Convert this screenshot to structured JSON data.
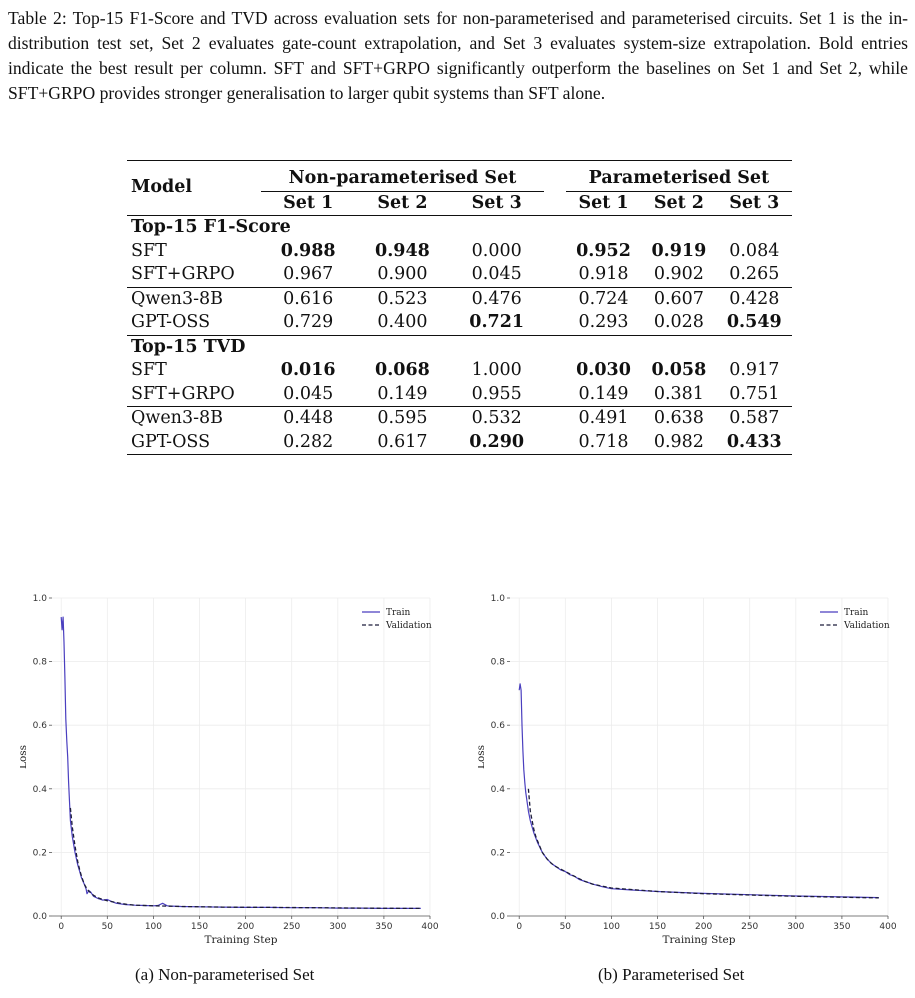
{
  "caption": "Table 2: Top-15 F1-Score and TVD across evaluation sets for non-parameterised and parameterised circuits. Set 1 is the in-distribution test set, Set 2 evaluates gate-count extrapolation, and Set 3 evaluates system-size extrapolation. Bold entries indicate the best result per column. SFT and SFT+GRPO significantly outperform the baselines on Set 1 and Set 2, while SFT+GRPO provides stronger generalisation to larger qubit systems than SFT alone.",
  "table": {
    "model_header": "Model",
    "group_nonparam": "Non-parameterised Set",
    "group_param": "Parameterised Set",
    "set_labels": [
      "Set 1",
      "Set 2",
      "Set 3",
      "Set 1",
      "Set 2",
      "Set 3"
    ],
    "sections": [
      {
        "title": "Top-15 F1-Score",
        "rows": [
          {
            "model": "SFT",
            "values": [
              "0.988",
              "0.948",
              "0.000",
              "0.952",
              "0.919",
              "0.084"
            ]
          },
          {
            "model": "SFT+GRPO",
            "values": [
              "0.967",
              "0.900",
              "0.045",
              "0.918",
              "0.902",
              "0.265"
            ]
          },
          {
            "model": "Qwen3-8B",
            "values": [
              "0.616",
              "0.523",
              "0.476",
              "0.724",
              "0.607",
              "0.428"
            ]
          },
          {
            "model": "GPT-OSS",
            "values": [
              "0.729",
              "0.400",
              "0.721",
              "0.293",
              "0.028",
              "0.549"
            ]
          }
        ]
      },
      {
        "title": "Top-15 TVD",
        "rows": [
          {
            "model": "SFT",
            "values": [
              "0.016",
              "0.068",
              "1.000",
              "0.030",
              "0.058",
              "0.917"
            ]
          },
          {
            "model": "SFT+GRPO",
            "values": [
              "0.045",
              "0.149",
              "0.955",
              "0.149",
              "0.381",
              "0.751"
            ]
          },
          {
            "model": "Qwen3-8B",
            "values": [
              "0.448",
              "0.595",
              "0.532",
              "0.491",
              "0.638",
              "0.587"
            ]
          },
          {
            "model": "GPT-OSS",
            "values": [
              "0.282",
              "0.617",
              "0.290",
              "0.718",
              "0.982",
              "0.433"
            ]
          }
        ]
      }
    ]
  },
  "chart_data": [
    {
      "type": "line",
      "caption": "(a) Non-parameterised Set",
      "xlabel": "Training Step",
      "ylabel": "Loss",
      "xlim": [
        -10,
        400
      ],
      "ylim": [
        0,
        1.0
      ],
      "xticks": [
        0,
        50,
        100,
        150,
        200,
        250,
        300,
        350,
        400
      ],
      "yticks": [
        0.0,
        0.2,
        0.4,
        0.6,
        0.8,
        1.0
      ],
      "ytick_labels": [
        "0.0",
        "0.2",
        "0.4",
        "0.6",
        "0.8",
        "1.0"
      ],
      "grid": true,
      "legend": "top-right",
      "series": [
        {
          "name": "Train",
          "style": "solid",
          "color": "#4a3fbf",
          "x": [
            0,
            1,
            2,
            3,
            4,
            5,
            6,
            7,
            8,
            9,
            10,
            12,
            15,
            18,
            20,
            22,
            25,
            27,
            28,
            30,
            32,
            35,
            40,
            45,
            50,
            55,
            60,
            70,
            80,
            90,
            100,
            105,
            110,
            115,
            120,
            130,
            150,
            175,
            200,
            225,
            250,
            275,
            300,
            325,
            350,
            375,
            390
          ],
          "y": [
            0.94,
            0.9,
            0.94,
            0.86,
            0.75,
            0.62,
            0.55,
            0.5,
            0.42,
            0.36,
            0.3,
            0.25,
            0.2,
            0.16,
            0.14,
            0.12,
            0.1,
            0.085,
            0.07,
            0.08,
            0.075,
            0.062,
            0.055,
            0.05,
            0.052,
            0.045,
            0.04,
            0.036,
            0.034,
            0.033,
            0.032,
            0.033,
            0.04,
            0.032,
            0.031,
            0.03,
            0.029,
            0.028,
            0.027,
            0.027,
            0.026,
            0.026,
            0.025,
            0.025,
            0.024,
            0.024,
            0.024
          ]
        },
        {
          "name": "Validation",
          "style": "dashed",
          "color": "#1c1c3a",
          "x": [
            10,
            12,
            15,
            18,
            20,
            22,
            25,
            28,
            30,
            35,
            40,
            45,
            50,
            60,
            70,
            80,
            100,
            130,
            175,
            225,
            275,
            325,
            375,
            390
          ],
          "y": [
            0.34,
            0.28,
            0.22,
            0.17,
            0.145,
            0.125,
            0.1,
            0.085,
            0.078,
            0.065,
            0.057,
            0.052,
            0.048,
            0.042,
            0.037,
            0.034,
            0.032,
            0.03,
            0.028,
            0.027,
            0.026,
            0.025,
            0.024,
            0.024
          ]
        }
      ]
    },
    {
      "type": "line",
      "caption": "(b) Parameterised Set",
      "xlabel": "Training Step",
      "ylabel": "Loss",
      "xlim": [
        -10,
        400
      ],
      "ylim": [
        0,
        1.0
      ],
      "xticks": [
        0,
        50,
        100,
        150,
        200,
        250,
        300,
        350,
        400
      ],
      "yticks": [
        0.0,
        0.2,
        0.4,
        0.6,
        0.8,
        1.0
      ],
      "ytick_labels": [
        "0.0",
        "0.2",
        "0.4",
        "0.6",
        "0.8",
        "1.0"
      ],
      "grid": true,
      "legend": "top-right",
      "series": [
        {
          "name": "Train",
          "style": "solid",
          "color": "#4a3fbf",
          "x": [
            0,
            1,
            2,
            3,
            4,
            5,
            6,
            7,
            8,
            9,
            10,
            12,
            14,
            16,
            18,
            20,
            25,
            30,
            35,
            40,
            45,
            50,
            55,
            60,
            65,
            70,
            80,
            90,
            100,
            120,
            150,
            175,
            200,
            250,
            300,
            350,
            390
          ],
          "y": [
            0.71,
            0.73,
            0.71,
            0.6,
            0.52,
            0.46,
            0.42,
            0.39,
            0.37,
            0.35,
            0.33,
            0.3,
            0.28,
            0.26,
            0.245,
            0.23,
            0.2,
            0.18,
            0.165,
            0.155,
            0.145,
            0.14,
            0.13,
            0.125,
            0.115,
            0.11,
            0.1,
            0.092,
            0.086,
            0.082,
            0.077,
            0.074,
            0.071,
            0.067,
            0.063,
            0.06,
            0.058
          ]
        },
        {
          "name": "Validation",
          "style": "dashed",
          "color": "#1c1c3a",
          "x": [
            10,
            12,
            14,
            16,
            18,
            20,
            25,
            30,
            35,
            40,
            50,
            60,
            70,
            80,
            100,
            150,
            200,
            250,
            300,
            350,
            390
          ],
          "y": [
            0.4,
            0.33,
            0.3,
            0.27,
            0.25,
            0.235,
            0.2,
            0.18,
            0.165,
            0.155,
            0.14,
            0.125,
            0.11,
            0.1,
            0.088,
            0.077,
            0.07,
            0.066,
            0.062,
            0.059,
            0.057
          ]
        }
      ]
    }
  ]
}
